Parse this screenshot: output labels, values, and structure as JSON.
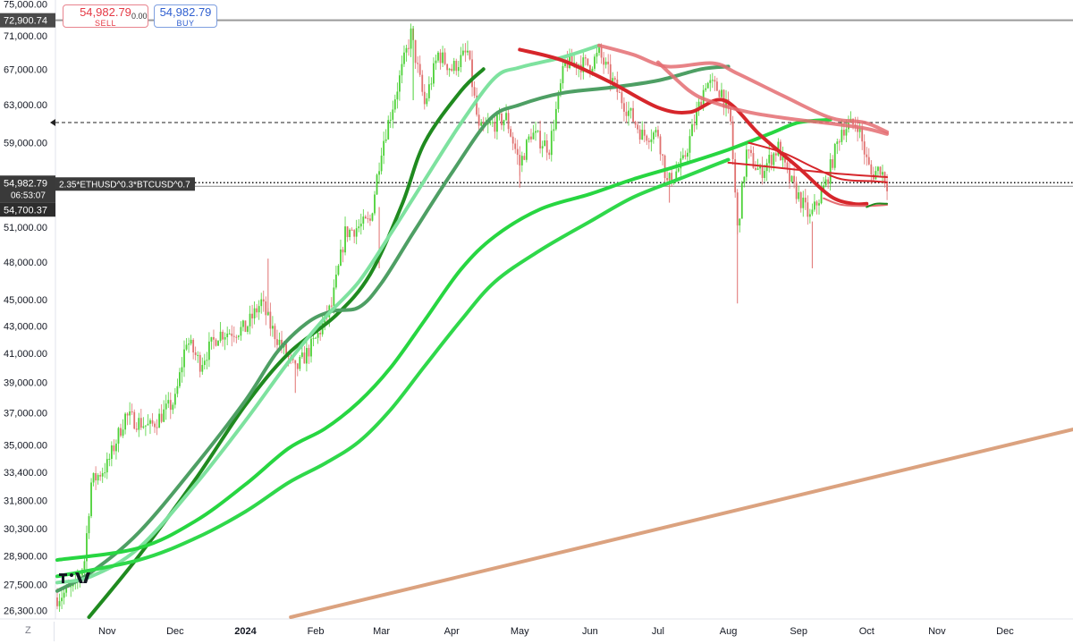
{
  "trade": {
    "sell_price": "54,982.79",
    "sell_label": "SELL",
    "spread": "0.00",
    "buy_price": "54,982.79",
    "buy_label": "BUY"
  },
  "bottom_left_label": "Z",
  "colors": {
    "bull_candle": "#4cd137",
    "bear_candle": "#e0706f",
    "ma_dark_green": "#1f8a1f",
    "ma_medium_green": "#4e9f64",
    "ma_light_green": "#7ee29f",
    "ma_bright_green": "#27d641",
    "ma_red": "#d6262b",
    "ma_pink": "#e46d72",
    "trend_line": "#dba27f"
  },
  "chart_data": {
    "type": "line",
    "title": "",
    "symbol_label": "2.35*ETHUSD^0.3*BTCUSD^0.7",
    "y_axis": {
      "scale": "log",
      "range": [
        26000,
        75500
      ],
      "tick_labels": [
        "75,000.00",
        "71,000.00",
        "67,000.00",
        "63,000.00",
        "59,000.00",
        "51,000.00",
        "48,000.00",
        "45,000.00",
        "43,000.00",
        "41,000.00",
        "39,000.00",
        "37,000.00",
        "35,000.00",
        "33,400.00",
        "31,800.00",
        "30,300.00",
        "28,900.00",
        "27,500.00",
        "26,300.00"
      ]
    },
    "x_axis": {
      "range": [
        "2023-10-10",
        "2024-12-31"
      ],
      "ticks": [
        {
          "date": "2023-11-01",
          "label": "Nov",
          "bold": false
        },
        {
          "date": "2023-12-01",
          "label": "Dec",
          "bold": false
        },
        {
          "date": "2024-01-01",
          "label": "2024",
          "bold": true
        },
        {
          "date": "2024-02-01",
          "label": "Feb",
          "bold": false
        },
        {
          "date": "2024-03-01",
          "label": "Mar",
          "bold": false
        },
        {
          "date": "2024-04-01",
          "label": "Apr",
          "bold": false
        },
        {
          "date": "2024-05-01",
          "label": "May",
          "bold": false
        },
        {
          "date": "2024-06-01",
          "label": "Jun",
          "bold": false
        },
        {
          "date": "2024-07-01",
          "label": "Jul",
          "bold": false
        },
        {
          "date": "2024-08-01",
          "label": "Aug",
          "bold": false
        },
        {
          "date": "2024-09-01",
          "label": "Sep",
          "bold": false
        },
        {
          "date": "2024-10-01",
          "label": "Oct",
          "bold": false
        },
        {
          "date": "2024-11-01",
          "label": "Nov",
          "bold": false
        },
        {
          "date": "2024-12-01",
          "label": "Dec",
          "bold": false
        }
      ]
    },
    "price_labels": {
      "ath_line": {
        "value": 72900.74,
        "label": "72,900.74"
      },
      "current": {
        "value": 54982.79,
        "label": "54,982.79",
        "countdown": "06:53:07"
      },
      "low_marker": {
        "value": 54700.37,
        "label": "54,700.37"
      },
      "dashed_line": {
        "value": 61100
      }
    },
    "price_path": [
      {
        "date": "2023-10-10",
        "value": 26900
      },
      {
        "date": "2023-10-18",
        "value": 27400
      },
      {
        "date": "2023-10-22",
        "value": 28700
      },
      {
        "date": "2023-10-25",
        "value": 32800
      },
      {
        "date": "2023-11-01",
        "value": 33800
      },
      {
        "date": "2023-11-09",
        "value": 36800
      },
      {
        "date": "2023-11-20",
        "value": 36100
      },
      {
        "date": "2023-12-01",
        "value": 37800
      },
      {
        "date": "2023-12-06",
        "value": 42000
      },
      {
        "date": "2023-12-12",
        "value": 40300
      },
      {
        "date": "2023-12-20",
        "value": 42400
      },
      {
        "date": "2024-01-01",
        "value": 42800
      },
      {
        "date": "2024-01-08",
        "value": 44800
      },
      {
        "date": "2024-01-12",
        "value": 43000
      },
      {
        "date": "2024-01-23",
        "value": 39800
      },
      {
        "date": "2024-02-01",
        "value": 42000
      },
      {
        "date": "2024-02-08",
        "value": 44500
      },
      {
        "date": "2024-02-14",
        "value": 50500
      },
      {
        "date": "2024-02-25",
        "value": 51500
      },
      {
        "date": "2024-03-01",
        "value": 58500
      },
      {
        "date": "2024-03-05",
        "value": 62000
      },
      {
        "date": "2024-03-14",
        "value": 71200
      },
      {
        "date": "2024-03-20",
        "value": 63000
      },
      {
        "date": "2024-03-26",
        "value": 68800
      },
      {
        "date": "2024-04-01",
        "value": 67000
      },
      {
        "date": "2024-04-08",
        "value": 69000
      },
      {
        "date": "2024-04-13",
        "value": 60200
      },
      {
        "date": "2024-04-25",
        "value": 61600
      },
      {
        "date": "2024-05-01",
        "value": 56800
      },
      {
        "date": "2024-05-06",
        "value": 60000
      },
      {
        "date": "2024-05-14",
        "value": 58500
      },
      {
        "date": "2024-05-21",
        "value": 67800
      },
      {
        "date": "2024-06-01",
        "value": 67500
      },
      {
        "date": "2024-06-05",
        "value": 68800
      },
      {
        "date": "2024-06-14",
        "value": 64000
      },
      {
        "date": "2024-06-24",
        "value": 59800
      },
      {
        "date": "2024-07-01",
        "value": 60000
      },
      {
        "date": "2024-07-05",
        "value": 55000
      },
      {
        "date": "2024-07-12",
        "value": 57000
      },
      {
        "date": "2024-07-22",
        "value": 65500
      },
      {
        "date": "2024-07-29",
        "value": 64500
      },
      {
        "date": "2024-08-02",
        "value": 61000
      },
      {
        "date": "2024-08-05",
        "value": 50800
      },
      {
        "date": "2024-08-09",
        "value": 58000
      },
      {
        "date": "2024-08-15",
        "value": 56000
      },
      {
        "date": "2024-08-23",
        "value": 58500
      },
      {
        "date": "2024-08-27",
        "value": 55800
      },
      {
        "date": "2024-09-06",
        "value": 51800
      },
      {
        "date": "2024-09-13",
        "value": 55000
      },
      {
        "date": "2024-09-20",
        "value": 60500
      },
      {
        "date": "2024-09-27",
        "value": 61000
      },
      {
        "date": "2024-10-01",
        "value": 57200
      },
      {
        "date": "2024-10-03",
        "value": 55800
      },
      {
        "date": "2024-10-07",
        "value": 56500
      },
      {
        "date": "2024-10-10",
        "value": 54983
      }
    ],
    "series": [
      {
        "color": "#1f8a1f",
        "width": 4,
        "points": [
          {
            "date": "2023-10-24",
            "value": 26000
          },
          {
            "date": "2023-11-15",
            "value": 28900
          },
          {
            "date": "2023-12-10",
            "value": 33000
          },
          {
            "date": "2024-01-01",
            "value": 37500
          },
          {
            "date": "2024-01-20",
            "value": 41000
          },
          {
            "date": "2024-02-10",
            "value": 43800
          },
          {
            "date": "2024-02-25",
            "value": 47000
          },
          {
            "date": "2024-03-10",
            "value": 53000
          },
          {
            "date": "2024-03-20",
            "value": 59000
          },
          {
            "date": "2024-04-05",
            "value": 64500
          },
          {
            "date": "2024-04-15",
            "value": 67000
          }
        ]
      },
      {
        "color": "#4e9f64",
        "width": 4,
        "points": [
          {
            "date": "2023-10-10",
            "value": 27200
          },
          {
            "date": "2023-10-25",
            "value": 28100
          },
          {
            "date": "2023-11-15",
            "value": 30100
          },
          {
            "date": "2023-12-10",
            "value": 33800
          },
          {
            "date": "2024-01-01",
            "value": 37800
          },
          {
            "date": "2024-01-15",
            "value": 41100
          },
          {
            "date": "2024-01-28",
            "value": 43200
          },
          {
            "date": "2024-02-08",
            "value": 44100
          },
          {
            "date": "2024-02-20",
            "value": 44400
          },
          {
            "date": "2024-03-01",
            "value": 46300
          },
          {
            "date": "2024-03-15",
            "value": 50500
          },
          {
            "date": "2024-04-01",
            "value": 56000
          },
          {
            "date": "2024-04-18",
            "value": 61500
          },
          {
            "date": "2024-05-01",
            "value": 63000
          },
          {
            "date": "2024-05-20",
            "value": 64300
          },
          {
            "date": "2024-06-10",
            "value": 64900
          },
          {
            "date": "2024-07-01",
            "value": 65700
          },
          {
            "date": "2024-07-20",
            "value": 67000
          },
          {
            "date": "2024-08-01",
            "value": 67300
          }
        ]
      },
      {
        "color": "#7ee29f",
        "width": 4,
        "points": [
          {
            "date": "2023-10-10",
            "value": 27600
          },
          {
            "date": "2023-10-25",
            "value": 27900
          },
          {
            "date": "2023-11-15",
            "value": 29300
          },
          {
            "date": "2023-12-10",
            "value": 32700
          },
          {
            "date": "2024-01-01",
            "value": 36500
          },
          {
            "date": "2024-01-20",
            "value": 40400
          },
          {
            "date": "2024-02-05",
            "value": 43600
          },
          {
            "date": "2024-02-20",
            "value": 46400
          },
          {
            "date": "2024-03-05",
            "value": 50400
          },
          {
            "date": "2024-03-20",
            "value": 55300
          },
          {
            "date": "2024-04-05",
            "value": 61000
          },
          {
            "date": "2024-04-20",
            "value": 66000
          },
          {
            "date": "2024-05-01",
            "value": 67200
          },
          {
            "date": "2024-05-20",
            "value": 68400
          },
          {
            "date": "2024-06-05",
            "value": 69800
          }
        ]
      },
      {
        "color": "#27d641",
        "width": 4,
        "points": [
          {
            "date": "2023-10-10",
            "value": 28700
          },
          {
            "date": "2023-11-15",
            "value": 29300
          },
          {
            "date": "2023-12-10",
            "value": 30700
          },
          {
            "date": "2024-01-01",
            "value": 32700
          },
          {
            "date": "2024-01-20",
            "value": 34800
          },
          {
            "date": "2024-02-05",
            "value": 36000
          },
          {
            "date": "2024-02-20",
            "value": 37700
          },
          {
            "date": "2024-03-05",
            "value": 40000
          },
          {
            "date": "2024-03-20",
            "value": 43400
          },
          {
            "date": "2024-04-05",
            "value": 47400
          },
          {
            "date": "2024-04-20",
            "value": 50200
          },
          {
            "date": "2024-05-10",
            "value": 52600
          },
          {
            "date": "2024-06-01",
            "value": 54000
          },
          {
            "date": "2024-06-20",
            "value": 55400
          },
          {
            "date": "2024-07-10",
            "value": 56700
          },
          {
            "date": "2024-08-01",
            "value": 58300
          },
          {
            "date": "2024-08-20",
            "value": 60000
          },
          {
            "date": "2024-09-01",
            "value": 61100
          },
          {
            "date": "2024-09-15",
            "value": 61400
          }
        ]
      },
      {
        "color": "#2fd84a",
        "width": 4,
        "points": [
          {
            "date": "2023-10-10",
            "value": 27900
          },
          {
            "date": "2023-11-15",
            "value": 28700
          },
          {
            "date": "2023-12-10",
            "value": 29800
          },
          {
            "date": "2024-01-01",
            "value": 31200
          },
          {
            "date": "2024-01-20",
            "value": 32800
          },
          {
            "date": "2024-02-05",
            "value": 33900
          },
          {
            "date": "2024-02-20",
            "value": 35200
          },
          {
            "date": "2024-03-05",
            "value": 37200
          },
          {
            "date": "2024-03-20",
            "value": 40100
          },
          {
            "date": "2024-04-05",
            "value": 43400
          },
          {
            "date": "2024-04-20",
            "value": 46400
          },
          {
            "date": "2024-05-10",
            "value": 49000
          },
          {
            "date": "2024-06-01",
            "value": 51500
          },
          {
            "date": "2024-06-20",
            "value": 53700
          },
          {
            "date": "2024-07-10",
            "value": 55400
          },
          {
            "date": "2024-07-25",
            "value": 56700
          },
          {
            "date": "2024-08-01",
            "value": 57300
          }
        ]
      },
      {
        "color": "#d6262b",
        "width": 4,
        "points": [
          {
            "date": "2024-05-01",
            "value": 69300
          },
          {
            "date": "2024-05-20",
            "value": 68000
          },
          {
            "date": "2024-06-10",
            "value": 65500
          },
          {
            "date": "2024-07-01",
            "value": 62700
          },
          {
            "date": "2024-07-15",
            "value": 62200
          },
          {
            "date": "2024-07-30",
            "value": 63500
          },
          {
            "date": "2024-08-15",
            "value": 59800
          },
          {
            "date": "2024-09-01",
            "value": 56500
          },
          {
            "date": "2024-09-15",
            "value": 53800
          },
          {
            "date": "2024-09-25",
            "value": 53100
          },
          {
            "date": "2024-10-01",
            "value": 53100
          }
        ]
      },
      {
        "color": "#d6262b",
        "width": 2,
        "points": [
          {
            "date": "2024-08-01",
            "value": 57000
          },
          {
            "date": "2024-08-15",
            "value": 56700
          },
          {
            "date": "2024-09-01",
            "value": 56300
          },
          {
            "date": "2024-09-20",
            "value": 55900
          },
          {
            "date": "2024-10-10",
            "value": 55600
          }
        ]
      },
      {
        "color": "#e46d72",
        "width": 4,
        "opacity": 0.85,
        "points": [
          {
            "date": "2024-06-05",
            "value": 69800
          },
          {
            "date": "2024-06-20",
            "value": 68700
          },
          {
            "date": "2024-07-05",
            "value": 67300
          },
          {
            "date": "2024-07-25",
            "value": 67700
          },
          {
            "date": "2024-08-05",
            "value": 66500
          },
          {
            "date": "2024-08-25",
            "value": 64000
          },
          {
            "date": "2024-09-15",
            "value": 61600
          },
          {
            "date": "2024-09-30",
            "value": 61100
          },
          {
            "date": "2024-10-10",
            "value": 60100
          }
        ]
      },
      {
        "color": "#e46d72",
        "width": 4,
        "opacity": 0.85,
        "points": [
          {
            "date": "2024-07-01",
            "value": 67800
          },
          {
            "date": "2024-07-15",
            "value": 64500
          },
          {
            "date": "2024-07-25",
            "value": 63300
          },
          {
            "date": "2024-08-10",
            "value": 62200
          },
          {
            "date": "2024-08-28",
            "value": 61500
          },
          {
            "date": "2024-09-15",
            "value": 61000
          },
          {
            "date": "2024-09-30",
            "value": 60500
          },
          {
            "date": "2024-10-10",
            "value": 59900
          }
        ]
      },
      {
        "color": "#d6262b",
        "width": 2,
        "points": [
          {
            "date": "2024-08-10",
            "value": 59000
          },
          {
            "date": "2024-08-25",
            "value": 58000
          },
          {
            "date": "2024-09-08",
            "value": 56500
          },
          {
            "date": "2024-09-20",
            "value": 55400
          },
          {
            "date": "2024-10-05",
            "value": 55200
          },
          {
            "date": "2024-10-10",
            "value": 55100
          }
        ]
      },
      {
        "color": "#e46d72",
        "width": 2,
        "points": [
          {
            "date": "2024-09-12",
            "value": 53600
          },
          {
            "date": "2024-09-20",
            "value": 53000
          },
          {
            "date": "2024-10-01",
            "value": 52900
          },
          {
            "date": "2024-10-10",
            "value": 53000
          }
        ]
      },
      {
        "color": "#1f8a1f",
        "width": 2,
        "points": [
          {
            "date": "2024-10-01",
            "value": 52800
          },
          {
            "date": "2024-10-05",
            "value": 53100
          },
          {
            "date": "2024-10-10",
            "value": 53100
          }
        ]
      },
      {
        "color": "#dba27f",
        "width": 4,
        "points": [
          {
            "date": "2024-01-21",
            "value": 26000
          },
          {
            "date": "2025-01-07",
            "value": 36200
          }
        ]
      }
    ]
  }
}
